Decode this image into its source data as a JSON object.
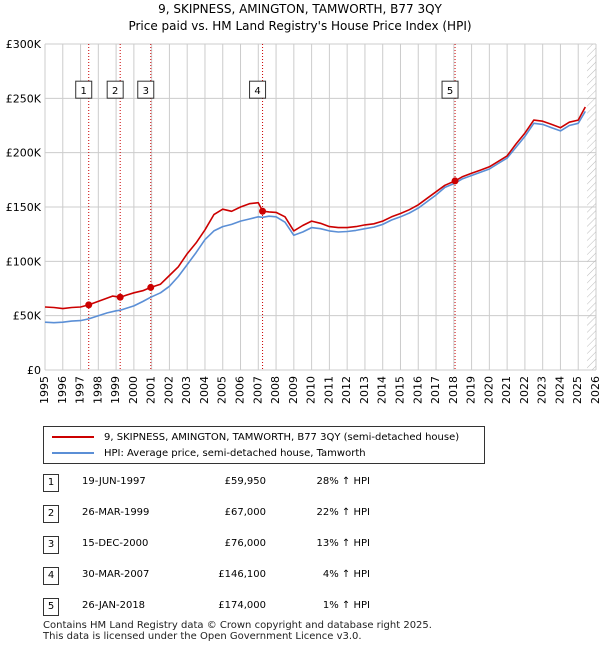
{
  "title_line1": "9, SKIPNESS, AMINGTON, TAMWORTH, B77 3QY",
  "title_line2": "Price paid vs. HM Land Registry's House Price Index (HPI)",
  "colors": {
    "property": "#cc0000",
    "hpi": "#5b8fd6",
    "grid": "#cccccc",
    "plot_bg": "#ffffff",
    "marker_line": "#cc0000"
  },
  "legend": {
    "property_label": "9, SKIPNESS, AMINGTON, TAMWORTH, B77 3QY (semi-detached house)",
    "hpi_label": "HPI: Average price, semi-detached house, Tamworth"
  },
  "sales": [
    {
      "num": "1",
      "date": "19-JUN-1997",
      "price": "£59,950",
      "hpi": "28% ↑ HPI",
      "x": 1997.46,
      "value": 59950
    },
    {
      "num": "2",
      "date": "26-MAR-1999",
      "price": "£67,000",
      "hpi": "22% ↑ HPI",
      "x": 1999.23,
      "value": 67000
    },
    {
      "num": "3",
      "date": "15-DEC-2000",
      "price": "£76,000",
      "hpi": "13% ↑ HPI",
      "x": 2000.95,
      "value": 76000
    },
    {
      "num": "4",
      "date": "30-MAR-2007",
      "price": "£146,100",
      "hpi": "4% ↑ HPI",
      "x": 2007.24,
      "value": 146100
    },
    {
      "num": "5",
      "date": "26-JAN-2018",
      "price": "£174,000",
      "hpi": "1% ↑ HPI",
      "x": 2018.07,
      "value": 174000
    }
  ],
  "footer_line1": "Contains HM Land Registry data © Crown copyright and database right 2025.",
  "footer_line2": "This data is licensed under the Open Government Licence v3.0.",
  "chart_data": {
    "type": "line",
    "title": "9, SKIPNESS, AMINGTON, TAMWORTH, B77 3QY — Price paid vs. HM Land Registry's House Price Index (HPI)",
    "xlabel": "",
    "ylabel": "",
    "xlim": [
      1995,
      2026
    ],
    "ylim": [
      0,
      300000
    ],
    "x_ticks": [
      1995,
      1996,
      1997,
      1998,
      1999,
      2000,
      2001,
      2002,
      2003,
      2004,
      2005,
      2006,
      2007,
      2008,
      2009,
      2010,
      2011,
      2012,
      2013,
      2014,
      2015,
      2016,
      2017,
      2018,
      2019,
      2020,
      2021,
      2022,
      2023,
      2024,
      2025,
      2026
    ],
    "y_ticks": [
      0,
      50000,
      100000,
      150000,
      200000,
      250000,
      300000
    ],
    "y_tick_labels": [
      "£0",
      "£50K",
      "£100K",
      "£150K",
      "£200K",
      "£250K",
      "£300K"
    ],
    "grid": true,
    "future_hatch_start": 2025.5,
    "series": [
      {
        "name": "9, SKIPNESS, AMINGTON, TAMWORTH, B77 3QY (semi-detached house)",
        "color": "#cc0000",
        "points": [
          [
            1995.0,
            58000
          ],
          [
            1995.5,
            57500
          ],
          [
            1996.0,
            56500
          ],
          [
            1996.5,
            57500
          ],
          [
            1997.0,
            58000
          ],
          [
            1997.46,
            59950
          ],
          [
            1997.8,
            62000
          ],
          [
            1998.3,
            65000
          ],
          [
            1998.8,
            68000
          ],
          [
            1999.23,
            67000
          ],
          [
            1999.6,
            69000
          ],
          [
            2000.0,
            71000
          ],
          [
            2000.5,
            73000
          ],
          [
            2000.95,
            76000
          ],
          [
            2001.5,
            79000
          ],
          [
            2002.0,
            87000
          ],
          [
            2002.5,
            95000
          ],
          [
            2003.0,
            107000
          ],
          [
            2003.5,
            117000
          ],
          [
            2004.0,
            129000
          ],
          [
            2004.5,
            143000
          ],
          [
            2005.0,
            148000
          ],
          [
            2005.5,
            146000
          ],
          [
            2006.0,
            150000
          ],
          [
            2006.5,
            153000
          ],
          [
            2007.0,
            154000
          ],
          [
            2007.24,
            146100
          ],
          [
            2007.6,
            145500
          ],
          [
            2008.0,
            145000
          ],
          [
            2008.5,
            141000
          ],
          [
            2009.0,
            128000
          ],
          [
            2009.5,
            133000
          ],
          [
            2010.0,
            137000
          ],
          [
            2010.5,
            135000
          ],
          [
            2011.0,
            132000
          ],
          [
            2011.5,
            131000
          ],
          [
            2012.0,
            131000
          ],
          [
            2012.5,
            132000
          ],
          [
            2013.0,
            133500
          ],
          [
            2013.5,
            134500
          ],
          [
            2014.0,
            137000
          ],
          [
            2014.5,
            141000
          ],
          [
            2015.0,
            144000
          ],
          [
            2015.5,
            147500
          ],
          [
            2016.0,
            152000
          ],
          [
            2016.5,
            158000
          ],
          [
            2017.0,
            164000
          ],
          [
            2017.5,
            170000
          ],
          [
            2018.07,
            174000
          ],
          [
            2018.5,
            178000
          ],
          [
            2019.0,
            181000
          ],
          [
            2019.5,
            184000
          ],
          [
            2020.0,
            187000
          ],
          [
            2020.5,
            192000
          ],
          [
            2021.0,
            197000
          ],
          [
            2021.5,
            208000
          ],
          [
            2022.0,
            218000
          ],
          [
            2022.5,
            230000
          ],
          [
            2023.0,
            229000
          ],
          [
            2023.5,
            226000
          ],
          [
            2024.0,
            223000
          ],
          [
            2024.5,
            228000
          ],
          [
            2025.0,
            230000
          ],
          [
            2025.4,
            242000
          ]
        ]
      },
      {
        "name": "HPI: Average price, semi-detached house, Tamworth",
        "color": "#5b8fd6",
        "points": [
          [
            1995.0,
            44000
          ],
          [
            1995.5,
            43500
          ],
          [
            1996.0,
            44000
          ],
          [
            1996.5,
            45000
          ],
          [
            1997.0,
            45500
          ],
          [
            1997.46,
            47000
          ],
          [
            1998.0,
            50000
          ],
          [
            1998.5,
            52500
          ],
          [
            1999.0,
            54500
          ],
          [
            1999.23,
            55000
          ],
          [
            1999.6,
            57000
          ],
          [
            2000.0,
            59000
          ],
          [
            2000.5,
            63000
          ],
          [
            2000.95,
            67000
          ],
          [
            2001.5,
            71000
          ],
          [
            2002.0,
            77000
          ],
          [
            2002.5,
            86000
          ],
          [
            2003.0,
            97000
          ],
          [
            2003.5,
            108000
          ],
          [
            2004.0,
            120000
          ],
          [
            2004.5,
            128000
          ],
          [
            2005.0,
            132000
          ],
          [
            2005.5,
            134000
          ],
          [
            2006.0,
            137000
          ],
          [
            2006.5,
            139000
          ],
          [
            2007.0,
            141000
          ],
          [
            2007.24,
            140500
          ],
          [
            2007.6,
            141500
          ],
          [
            2008.0,
            141000
          ],
          [
            2008.5,
            136000
          ],
          [
            2009.0,
            124000
          ],
          [
            2009.5,
            127000
          ],
          [
            2010.0,
            131000
          ],
          [
            2010.5,
            130000
          ],
          [
            2011.0,
            128000
          ],
          [
            2011.5,
            127000
          ],
          [
            2012.0,
            127500
          ],
          [
            2012.5,
            128500
          ],
          [
            2013.0,
            130000
          ],
          [
            2013.5,
            131500
          ],
          [
            2014.0,
            134000
          ],
          [
            2014.5,
            138000
          ],
          [
            2015.0,
            141000
          ],
          [
            2015.5,
            144500
          ],
          [
            2016.0,
            149000
          ],
          [
            2016.5,
            155000
          ],
          [
            2017.0,
            161000
          ],
          [
            2017.5,
            168000
          ],
          [
            2018.07,
            172000
          ],
          [
            2018.5,
            176000
          ],
          [
            2019.0,
            179000
          ],
          [
            2019.5,
            182000
          ],
          [
            2020.0,
            185000
          ],
          [
            2020.5,
            190000
          ],
          [
            2021.0,
            195000
          ],
          [
            2021.5,
            205000
          ],
          [
            2022.0,
            215000
          ],
          [
            2022.5,
            227000
          ],
          [
            2023.0,
            226000
          ],
          [
            2023.5,
            223000
          ],
          [
            2024.0,
            220000
          ],
          [
            2024.5,
            225000
          ],
          [
            2025.0,
            227000
          ],
          [
            2025.4,
            238000
          ]
        ]
      }
    ],
    "annotations": [
      {
        "label": "1",
        "x": 1997.46
      },
      {
        "label": "2",
        "x": 1999.23
      },
      {
        "label": "3",
        "x": 2000.95
      },
      {
        "label": "4",
        "x": 2007.24
      },
      {
        "label": "5",
        "x": 2018.07
      }
    ]
  }
}
